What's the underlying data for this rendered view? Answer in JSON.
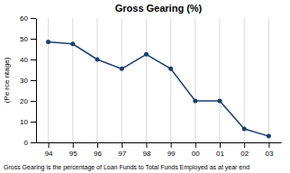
{
  "chart_data": {
    "type": "line",
    "title": "Gross Gearing (%)",
    "ylabel": "(Pe rce ntage)",
    "footnote": "Gross Gearing is the percentage of Loan Funds to Total Funds Employed as at year end",
    "categories": [
      "94",
      "95",
      "96",
      "97",
      "98",
      "99",
      "00",
      "01",
      "02",
      "03"
    ],
    "values": [
      48.5,
      47.5,
      40.0,
      35.5,
      42.5,
      35.5,
      20.0,
      20.0,
      6.5,
      3.0
    ],
    "color": "#1a3e6e",
    "marker": "circle",
    "ylim": [
      0,
      60
    ],
    "yticks": [
      0,
      10,
      20,
      30,
      40,
      50,
      60
    ],
    "grid": "x"
  }
}
